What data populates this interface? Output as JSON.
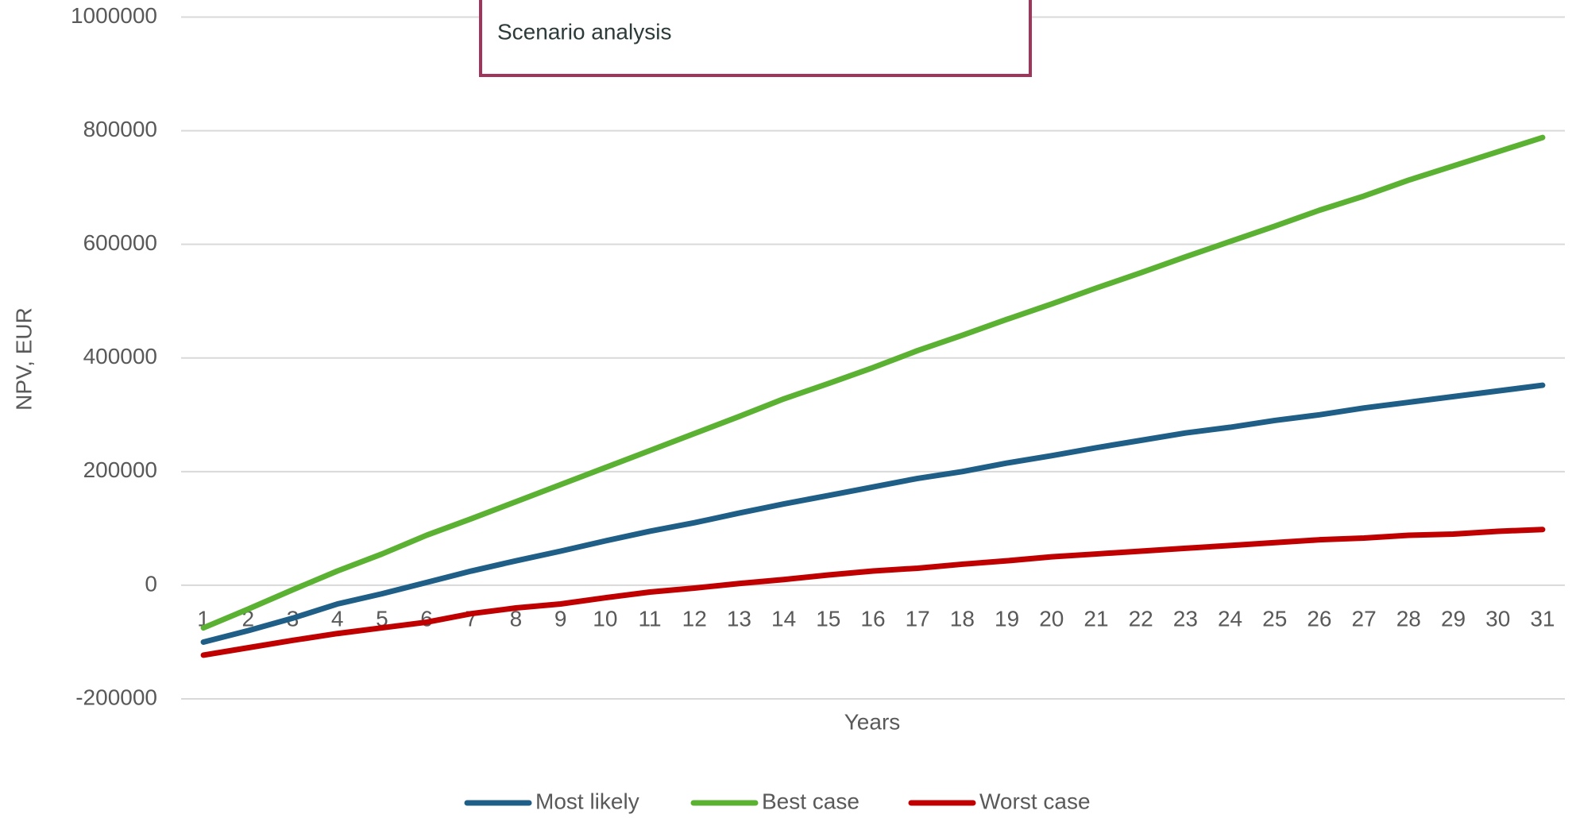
{
  "chart_data": {
    "type": "line",
    "title": "Scenario analysis",
    "x_label": "Years",
    "y_label": "NPV, EUR",
    "categories": [
      "1",
      "2",
      "3",
      "4",
      "5",
      "6",
      "7",
      "8",
      "9",
      "10",
      "11",
      "12",
      "13",
      "14",
      "15",
      "16",
      "17",
      "18",
      "19",
      "20",
      "21",
      "22",
      "23",
      "24",
      "25",
      "26",
      "27",
      "28",
      "29",
      "30",
      "31"
    ],
    "series": [
      {
        "name": "Most likely",
        "color": "#1f5f87",
        "values": [
          -100000,
          -80000,
          -58000,
          -33000,
          -15000,
          5000,
          25000,
          43000,
          60000,
          78000,
          95000,
          110000,
          127000,
          143000,
          158000,
          173000,
          188000,
          200000,
          215000,
          228000,
          242000,
          255000,
          268000,
          278000,
          290000,
          300000,
          312000,
          322000,
          332000,
          342000,
          352000
        ]
      },
      {
        "name": "Best case",
        "color": "#5bb131",
        "values": [
          -75000,
          -42000,
          -8000,
          25000,
          55000,
          88000,
          117000,
          147000,
          177000,
          207000,
          237000,
          267000,
          297000,
          328000,
          355000,
          383000,
          413000,
          440000,
          468000,
          495000,
          523000,
          550000,
          578000,
          605000,
          632000,
          660000,
          685000,
          713000,
          738000,
          763000,
          788000
        ]
      },
      {
        "name": "Worst case",
        "color": "#c00000",
        "values": [
          -123000,
          -110000,
          -97000,
          -85000,
          -75000,
          -65000,
          -50000,
          -40000,
          -33000,
          -22000,
          -12000,
          -5000,
          3000,
          10000,
          18000,
          25000,
          30000,
          37000,
          43000,
          50000,
          55000,
          60000,
          65000,
          70000,
          75000,
          80000,
          83000,
          88000,
          90000,
          95000,
          98000
        ]
      }
    ],
    "ylim": [
      -200000,
      1000000
    ],
    "yticks": [
      -200000,
      0,
      200000,
      400000,
      600000,
      800000,
      1000000
    ],
    "grid": true,
    "legend": "bottom"
  }
}
